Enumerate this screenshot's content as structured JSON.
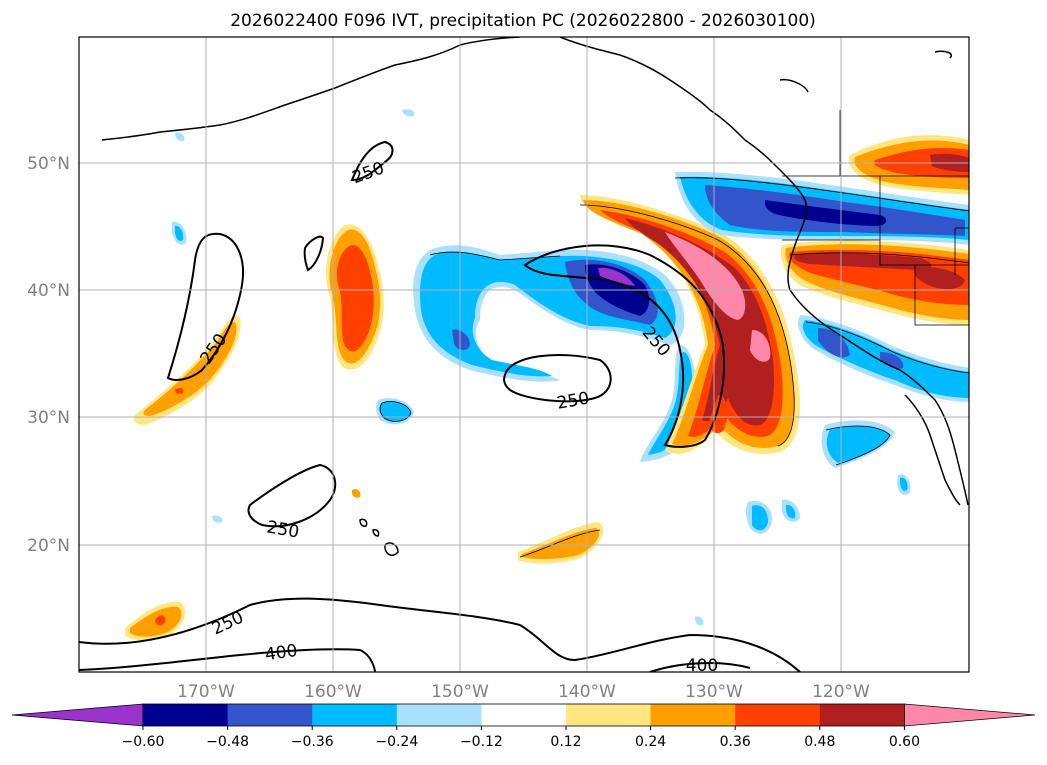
{
  "title": "2026022400 F096 IVT, precipitation PC (2026022800 - 2026030100)",
  "map": {
    "lon_labels": [
      "170°W",
      "160°W",
      "150°W",
      "140°W",
      "130°W",
      "120°W"
    ],
    "lat_labels": [
      "50°N",
      "40°N",
      "30°N",
      "20°N"
    ],
    "contour_labels": [
      "250",
      "250",
      "250",
      "250",
      "250",
      "250",
      "400",
      "400"
    ]
  },
  "colorbar": {
    "labels": [
      "−0.60",
      "−0.48",
      "−0.36",
      "−0.24",
      "−0.12",
      "0.12",
      "0.24",
      "0.36",
      "0.48",
      "0.60"
    ],
    "colors": [
      "#9933cc",
      "#000090",
      "#3355cc",
      "#00bbff",
      "#aae0ff",
      "#ffffff",
      "#ffe680",
      "#ffa000",
      "#ff4000",
      "#b02020",
      "#ff88aa"
    ]
  }
}
